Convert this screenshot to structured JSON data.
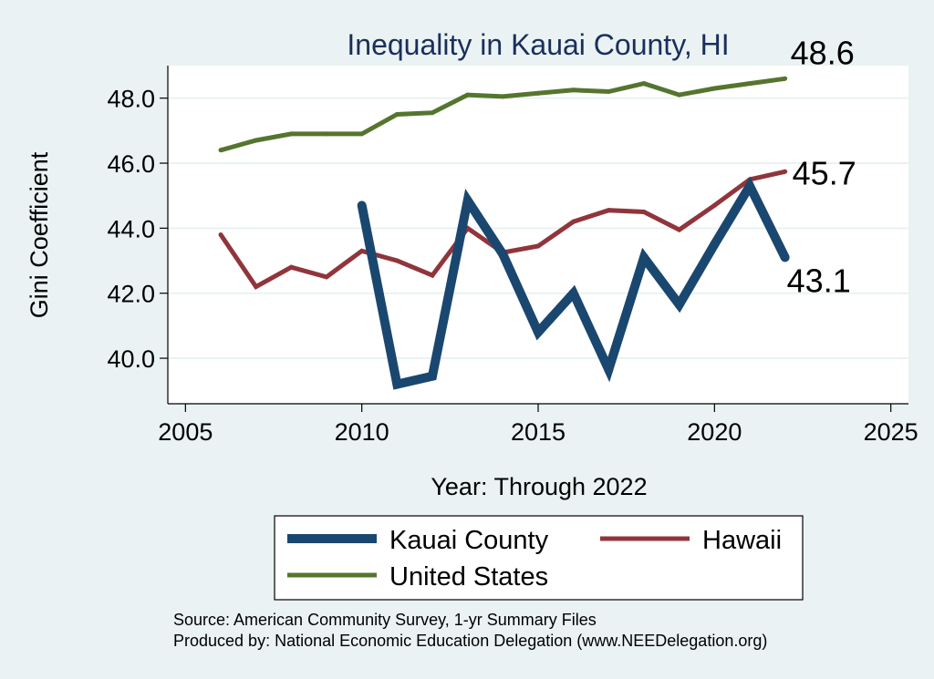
{
  "chart_data": {
    "type": "line",
    "title": "Inequality in Kauai County, HI",
    "xlabel": "Year: Through 2022",
    "ylabel": "Gini Coefficient",
    "xlim": [
      2004.5,
      2025.5
    ],
    "ylim": [
      38.6,
      49.0
    ],
    "x_ticks": [
      2005,
      2010,
      2015,
      2020,
      2025
    ],
    "y_ticks": [
      40.0,
      42.0,
      44.0,
      46.0,
      48.0
    ],
    "y_tick_labels": [
      "40.0",
      "42.0",
      "44.0",
      "46.0",
      "48.0"
    ],
    "grid": true,
    "legend_position": "bottom",
    "series": [
      {
        "name": "Kauai County",
        "color": "#1a476f",
        "width": 10,
        "end_label": "43.1",
        "x": [
          2010,
          2011,
          2012,
          2013,
          2014,
          2015,
          2016,
          2017,
          2018,
          2019,
          2020,
          2021,
          2022
        ],
        "values": [
          44.7,
          39.2,
          39.45,
          44.85,
          43.2,
          40.8,
          42.0,
          39.65,
          43.1,
          41.65,
          43.5,
          45.3,
          43.1
        ]
      },
      {
        "name": "Hawaii",
        "color": "#90353b",
        "width": 5,
        "end_label": "45.7",
        "x": [
          2006,
          2007,
          2008,
          2009,
          2010,
          2011,
          2012,
          2013,
          2014,
          2015,
          2016,
          2017,
          2018,
          2019,
          2020,
          2021,
          2022
        ],
        "values": [
          43.8,
          42.2,
          42.8,
          42.5,
          43.3,
          43.0,
          42.55,
          44.0,
          43.25,
          43.45,
          44.2,
          44.55,
          44.5,
          43.95,
          44.7,
          45.5,
          45.74
        ]
      },
      {
        "name": "United States",
        "color": "#55752f",
        "width": 5,
        "end_label": "48.6",
        "x": [
          2006,
          2007,
          2008,
          2009,
          2010,
          2011,
          2012,
          2013,
          2014,
          2015,
          2016,
          2017,
          2018,
          2019,
          2020,
          2021,
          2022
        ],
        "values": [
          46.4,
          46.7,
          46.9,
          46.9,
          46.9,
          47.5,
          47.55,
          48.1,
          48.05,
          48.15,
          48.25,
          48.2,
          48.45,
          48.1,
          48.3,
          48.45,
          48.6
        ]
      }
    ],
    "legend": {
      "items": [
        "Kauai County",
        "Hawaii",
        "United States"
      ]
    },
    "source_lines": [
      "Source: American Community Survey, 1-yr Summary Files",
      "Produced by: National Economic Education Delegation (www.NEEDelegation.org)"
    ]
  }
}
